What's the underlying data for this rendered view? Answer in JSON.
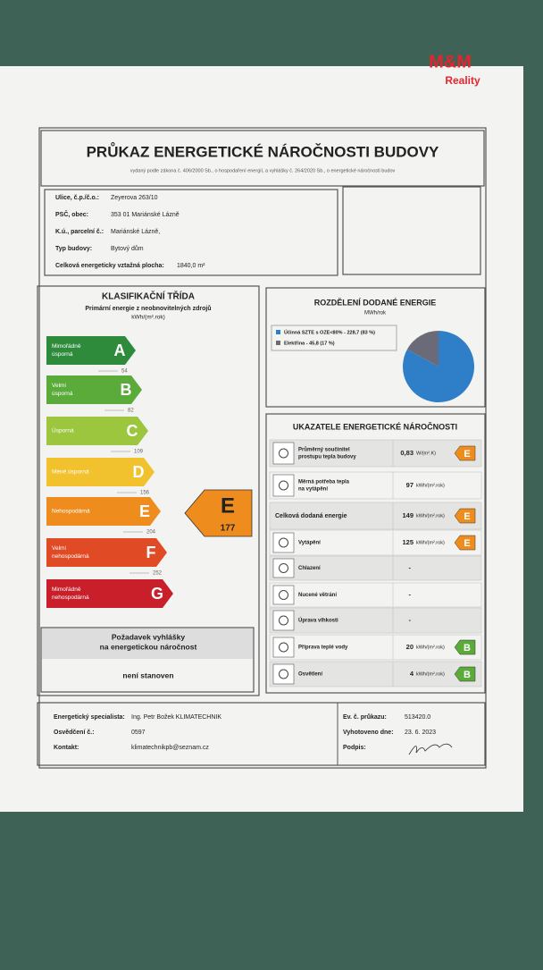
{
  "logo": {
    "brand": "M&M",
    "sub": "Reality"
  },
  "header": {
    "title": "PRŮKAZ ENERGETICKÉ NÁROČNOSTI BUDOVY",
    "subtitle": "vydaný podle zákona č. 406/2000 Sb., o hospodaření energií, a vyhlášky č. 264/2020 Sb., o energetické náročnosti budov"
  },
  "building": {
    "rows": [
      [
        "Ulice, č.p./č.o.:",
        "Zeyerova 263/10"
      ],
      [
        "PSČ, obec:",
        "353 01 Mariánské Lázně"
      ],
      [
        "K.ú., parcelní č.:",
        "Mariánské Lázně,"
      ],
      [
        "Typ budovy:",
        "Bytový dům"
      ],
      [
        "Celková energeticky vztažná plocha:",
        "1840,0 m²"
      ]
    ]
  },
  "classification": {
    "title": "KLASIFIKAČNÍ TŘÍDA",
    "subtitle": "Primární energie z neobnovitelných zdrojů",
    "unit": "kWh/(m².rok)",
    "classes": [
      {
        "letter": "A",
        "label": [
          "Mimořádně",
          "úsporná"
        ],
        "limit": "54"
      },
      {
        "letter": "B",
        "label": [
          "Velmi",
          "úsporná"
        ],
        "limit": "82"
      },
      {
        "letter": "C",
        "label": [
          "Úsporná"
        ],
        "limit": "109"
      },
      {
        "letter": "D",
        "label": [
          "Méně úsporná"
        ],
        "limit": "156"
      },
      {
        "letter": "E",
        "label": [
          "Nehospodárná"
        ],
        "limit": "204"
      },
      {
        "letter": "F",
        "label": [
          "Velmi",
          "nehospodárná"
        ],
        "limit": "252"
      },
      {
        "letter": "G",
        "label": [
          "Mimořádně",
          "nehospodárná"
        ]
      }
    ],
    "rating": {
      "letter": "E",
      "value": "177"
    }
  },
  "requirement": {
    "title": [
      "Požadavek vyhlášky",
      "na energetickou náročnost"
    ],
    "value": "není stanoven"
  },
  "distribution": {
    "title": "ROZDĚLENÍ DODANÉ ENERGIE",
    "unit": "MWh/rok",
    "items": [
      {
        "label": "Účinná SZTE s OZE<80% - 228,7 (83 %)",
        "share": 83,
        "color": "#2f7fc8"
      },
      {
        "label": "Elektřina - 45,8 (17 %)",
        "share": 17,
        "color": "#6b6a78"
      }
    ]
  },
  "indicators": {
    "title": "UKAZATELE ENERGETICKÉ NÁROČNOSTI",
    "rows": [
      {
        "label": [
          "Průměrný součinitel",
          "prostupu tepla budovy"
        ],
        "value": "0,83",
        "unit": "W/(m².K)",
        "class": "E"
      },
      {
        "label": [
          "Měrná potřeba tepla",
          "na vytápění"
        ],
        "value": "97",
        "unit": "kWh/(m².rok)"
      },
      {
        "label": [
          "Celková dodaná energie"
        ],
        "value": "149",
        "unit": "kWh/(m².rok)",
        "class": "E"
      },
      {
        "label": [
          "Vytápění"
        ],
        "value": "125",
        "unit": "kWh/(m².rok)",
        "class": "E"
      },
      {
        "label": [
          "Chlazení"
        ],
        "value": "-"
      },
      {
        "label": [
          "Nucené větrání"
        ],
        "value": "-"
      },
      {
        "label": [
          "Úprava vlhkosti"
        ],
        "value": "-"
      },
      {
        "label": [
          "Příprava teplé vody"
        ],
        "value": "20",
        "unit": "kWh/(m².rok)",
        "class": "B"
      },
      {
        "label": [
          "Osvětlení"
        ],
        "value": "4",
        "unit": "kWh/(m².rok)",
        "class": "B"
      }
    ]
  },
  "footer": {
    "left": [
      [
        "Energetický specialista:",
        "Ing. Petr Božek KLIMATECHNIK"
      ],
      [
        "Osvědčení č.:",
        "0597"
      ],
      [
        "Kontakt:",
        "klimatechnikpb@seznam.cz"
      ]
    ],
    "right": [
      [
        "Ev. č. průkazu:",
        "513420.0"
      ],
      [
        "Vyhotoveno dne:",
        "23. 6. 2023"
      ],
      [
        "Podpis:"
      ]
    ]
  }
}
